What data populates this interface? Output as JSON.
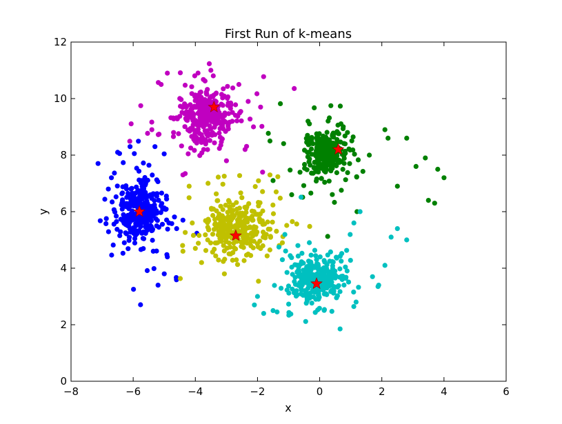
{
  "chart_data": {
    "type": "scatter",
    "title": "First Run of k-means",
    "xlabel": "x",
    "ylabel": "y",
    "xlim": [
      -8,
      6
    ],
    "ylim": [
      0,
      12
    ],
    "xticks": [
      -8,
      -6,
      -4,
      -2,
      0,
      2,
      4,
      6
    ],
    "yticks": [
      0,
      2,
      4,
      6,
      8,
      10,
      12
    ],
    "grid": false,
    "legend": "none",
    "series": [
      {
        "color": "#0000ff",
        "center": [
          -5.8,
          6.0
        ],
        "spread": [
          0.35,
          0.55
        ],
        "count": 320,
        "outliers": [
          [
            -6.7,
            7.2
          ],
          [
            -6.5,
            8.1
          ],
          [
            -5.2,
            3.4
          ],
          [
            -5.0,
            3.8
          ],
          [
            -4.6,
            5.4
          ],
          [
            -4.4,
            5.7
          ],
          [
            -5.3,
            8.3
          ],
          [
            -6.1,
            8.3
          ],
          [
            -4.9,
            4.4
          ],
          [
            -6.8,
            6.8
          ]
        ]
      },
      {
        "color": "#c000c0",
        "center": [
          -3.7,
          9.4
        ],
        "spread": [
          0.45,
          0.45
        ],
        "count": 300,
        "outliers": [
          [
            -4.9,
            10.9
          ],
          [
            -5.1,
            10.5
          ],
          [
            -3.5,
            11.0
          ],
          [
            -2.6,
            10.5
          ],
          [
            -2.3,
            9.9
          ],
          [
            -1.9,
            9.7
          ],
          [
            -3.0,
            7.8
          ],
          [
            -2.4,
            8.2
          ],
          [
            -4.7,
            8.8
          ],
          [
            -5.4,
            8.9
          ],
          [
            -4.4,
            7.3
          ]
        ]
      },
      {
        "color": "#008000",
        "center": [
          0.2,
          8.1
        ],
        "spread": [
          0.35,
          0.4
        ],
        "count": 280,
        "outliers": [
          [
            3.5,
            6.4
          ],
          [
            3.7,
            6.3
          ],
          [
            3.8,
            7.5
          ],
          [
            4.0,
            7.2
          ],
          [
            3.4,
            7.9
          ],
          [
            3.1,
            7.6
          ],
          [
            2.8,
            8.6
          ],
          [
            2.1,
            8.9
          ],
          [
            2.2,
            8.6
          ],
          [
            -1.6,
            8.5
          ],
          [
            -0.9,
            6.6
          ],
          [
            -1.5,
            7.1
          ],
          [
            1.2,
            6.0
          ],
          [
            2.5,
            6.9
          ]
        ]
      },
      {
        "color": "#c0c000",
        "center": [
          -2.7,
          5.4
        ],
        "spread": [
          0.45,
          0.45
        ],
        "count": 300,
        "outliers": [
          [
            -4.2,
            6.9
          ],
          [
            -3.8,
            4.2
          ],
          [
            -4.4,
            4.6
          ],
          [
            -4.0,
            4.7
          ],
          [
            -1.6,
            7.3
          ],
          [
            -1.4,
            6.7
          ],
          [
            -1.2,
            4.9
          ],
          [
            -1.3,
            4.8
          ],
          [
            -2.3,
            4.5
          ],
          [
            -4.1,
            5.6
          ]
        ]
      },
      {
        "color": "#00c0c0",
        "center": [
          -0.1,
          3.6
        ],
        "spread": [
          0.4,
          0.35
        ],
        "count": 320,
        "outliers": [
          [
            2.8,
            5.0
          ],
          [
            2.5,
            5.4
          ],
          [
            2.3,
            5.1
          ],
          [
            1.3,
            6.0
          ],
          [
            1.9,
            3.4
          ],
          [
            2.1,
            4.1
          ],
          [
            -1.8,
            2.4
          ],
          [
            -2.1,
            2.7
          ],
          [
            -1.5,
            2.5
          ],
          [
            -2.0,
            3.0
          ],
          [
            1.7,
            3.7
          ],
          [
            -0.7,
            4.8
          ],
          [
            -1.2,
            4.3
          ],
          [
            1.1,
            5.6
          ]
        ]
      }
    ],
    "centroids": [
      {
        "x": -5.8,
        "y": 6.0
      },
      {
        "x": -3.4,
        "y": 9.7
      },
      {
        "x": 0.6,
        "y": 8.2
      },
      {
        "x": -2.7,
        "y": 5.15
      },
      {
        "x": -0.1,
        "y": 3.45
      }
    ],
    "centroid_color": "#ff0000"
  }
}
